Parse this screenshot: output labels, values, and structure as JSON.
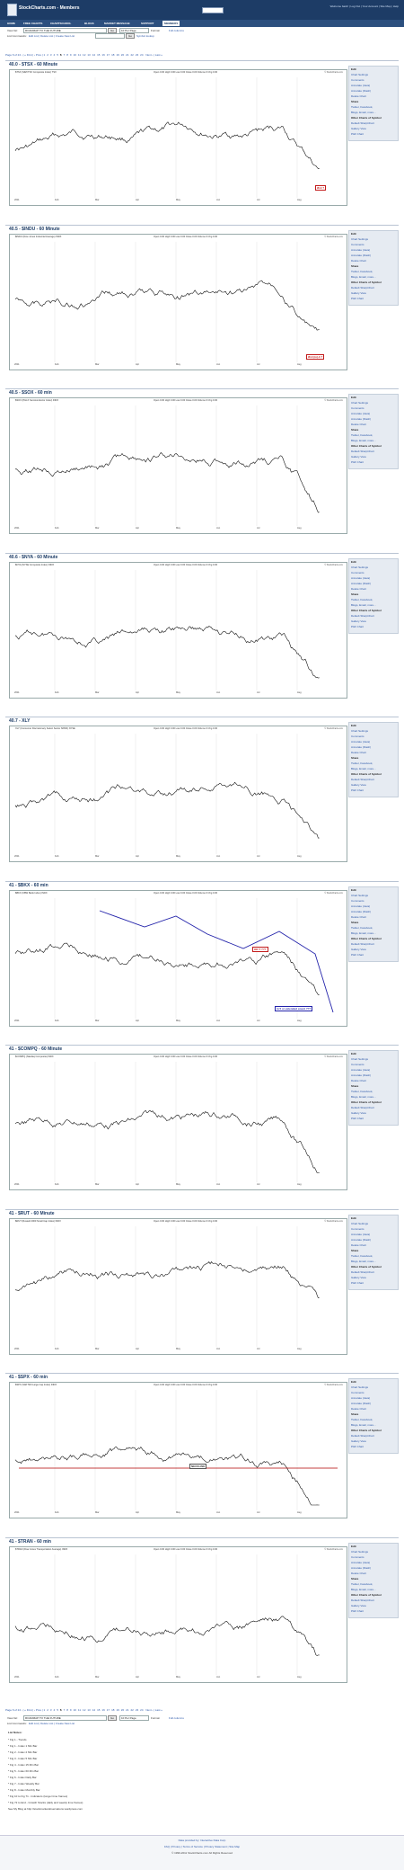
{
  "header": {
    "title": "StockCharts.com - Members",
    "welcome": "Welcome back! | Log Out | Your Account | Site Map | Help",
    "nav": [
      "HOME",
      "FREE CHARTS",
      "CHARTSCHOOL",
      "BLOGS",
      "MARKET MESSAGE",
      "SUPPORT",
      "MEMBERS"
    ],
    "active_nav": "MEMBERS"
  },
  "toolbar": {
    "view_label": "View list:",
    "list_value": "ROADMAP TO THE FUTURE",
    "go_label": "Go",
    "per_page_value": "10 Per Page",
    "format_label": "Format:",
    "full_column_label": "Full columns",
    "commands_label": "List Commands:",
    "commands": "Edit List | Delete List | Create New List",
    "search_placeholder": "Search",
    "go2": "Go",
    "symbol_value": "",
    "symbol_label": "Symbol lookup"
  },
  "paging": {
    "prefix": "Page 6 of 24 - | « First | ‹ Prev |",
    "pages": [
      "1",
      "2",
      "3",
      "4",
      "5",
      "6",
      "7",
      "8",
      "9",
      "10",
      "11",
      "12",
      "13",
      "14",
      "15",
      "16",
      "17",
      "18",
      "19",
      "20",
      "21",
      "22",
      "23",
      "24"
    ],
    "suffix": "Next › | Last »"
  },
  "charts": [
    {
      "title": "40.0 - $TSX - 60 Minute",
      "symbol": "$TSX (S&P/TSX Composite Index) TSX",
      "annotations": [
        {
          "text": "W-3 ?",
          "color": "red"
        }
      ]
    },
    {
      "title": "40.5 - $INDU - 60 Minute",
      "symbol": "$INDU (Dow Jones Industrial Average) INDX",
      "annotations": [
        {
          "text": "W-3 (in)-3 ?",
          "color": "red"
        }
      ]
    },
    {
      "title": "40.5 - $SOX - 60 min",
      "symbol": "$SOX (PHLX Semiconductor Index) INDX",
      "annotations": []
    },
    {
      "title": "40.6 - $NYA - 60 Minute",
      "symbol": "$NYA (NYSE Composite Index) INDX",
      "annotations": []
    },
    {
      "title": "40.7 - XLY",
      "symbol": "XLY (Consumer Discretionary Select Sector SPDR) NYSE",
      "annotations": []
    },
    {
      "title": "41 - $BKX - 60 min",
      "symbol": "$BKX (KBW Bank Index) INDX",
      "annotations": [
        {
          "text": "OR T ???",
          "color": "red"
        },
        {
          "text": "in 5 or extended count ???",
          "color": "blue"
        }
      ]
    },
    {
      "title": "41 - $COMPQ - 60 Minute",
      "symbol": "$COMPQ (Nasdaq Composite) INDX",
      "annotations": []
    },
    {
      "title": "41 - $RUT - 60 Minute",
      "symbol": "$RUT (Russell 2000 Small Cap Index) INDX",
      "annotations": []
    },
    {
      "title": "41 - $SPX - 60 min",
      "symbol": "$SPX (S&P 500 Large Cap Index) INDX",
      "annotations": [
        {
          "text": "NECKLINE",
          "color": "box"
        }
      ]
    },
    {
      "title": "41 - $TRAN - 60 min",
      "symbol": "$TRAN (Dow Jones Transportation Average) INDX",
      "annotations": []
    }
  ],
  "chart_common": {
    "ohlc": "Open 0.00 High 0.00 Low 0.00 Close 0.00 Volume 0 Chg 0.00",
    "copyright": "© StockCharts.com",
    "x_ticks": [
      "2011",
      "Feb",
      "Mar",
      "Apr",
      "May",
      "Jun",
      "Jul",
      "Aug"
    ]
  },
  "sidebar": {
    "items": [
      {
        "label": "Edit",
        "type": "head"
      },
      {
        "label": "Chart Settings",
        "type": "link"
      },
      {
        "label": "Comments",
        "type": "link"
      },
      {
        "label": "Annotate (Java)",
        "type": "link"
      },
      {
        "label": "Annotate (Flash)",
        "type": "link"
      },
      {
        "label": "Delete Chart",
        "type": "link"
      },
      {
        "label": "Share",
        "type": "head"
      },
      {
        "label": "Twitter, Facebook,",
        "type": "link"
      },
      {
        "label": "Blogs, Email, more...",
        "type": "link"
      },
      {
        "label": "Other Charts of Symbol",
        "type": "head"
      },
      {
        "label": "Default SharpChart",
        "type": "link"
      },
      {
        "label": "Gallery View",
        "type": "link"
      },
      {
        "label": "P&F Chart",
        "type": "link"
      }
    ]
  },
  "notes": {
    "title": "List Notes:",
    "items": [
      "* Fig 1 - Trends",
      "* Fig 1 - Index 1 Min Bar",
      "* Fig 2 - Index 2 Min Bar",
      "* Fig 3 - Index 5 Min Bar",
      "* Fig 4 - Index 15 Min Bar",
      "* Fig 5 - Index 60 Min Bar",
      "* Fig 6 - Index Daily Bar",
      "* Fig 7 - Index Weekly Bar",
      "* Fig 8 - Index Monthly Bar",
      "* Fig 10 to Fig 71 - Indicators (longer time frames)",
      "* Fig 72 to End - Growth Stocks (daily and weekly time frames)",
      "See My Blog at http://stockmarketobservations.wordpress.com"
    ]
  },
  "footer": {
    "line1": "Data provided by: Interactive Data Corp",
    "line2": "FAQ | Privacy | Terms of Service | Privacy Statement | Site Map",
    "line3": "© 1999-2011 StockCharts.com All Rights Reserved"
  },
  "colors": {
    "header_bg": "#1d3c66",
    "nav_bg": "#2c4f7e",
    "link": "#2a56a8",
    "annotation_red": "#c21a1a",
    "annotation_blue": "#2222aa",
    "neckline": "#b00000"
  }
}
